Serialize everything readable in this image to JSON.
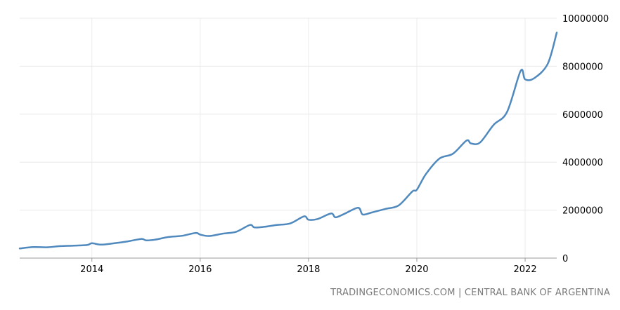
{
  "chart_data": {
    "type": "line",
    "title": "",
    "xlabel": "",
    "ylabel": "",
    "grid": true,
    "xlim": [
      "2012-09",
      "2022-08"
    ],
    "ylim": [
      0,
      10000000
    ],
    "x_ticks": [
      "2014",
      "2016",
      "2018",
      "2020",
      "2022"
    ],
    "y_ticks": [
      "0",
      "2000000",
      "4000000",
      "6000000",
      "8000000",
      "10000000"
    ],
    "series": [
      {
        "color": "#4f89bd",
        "x": [
          "2012-09",
          "2012-12",
          "2013-03",
          "2013-06",
          "2013-09",
          "2013-12",
          "2014-01",
          "2014-03",
          "2014-06",
          "2014-09",
          "2014-12",
          "2015-01",
          "2015-03",
          "2015-06",
          "2015-09",
          "2015-12",
          "2016-01",
          "2016-03",
          "2016-06",
          "2016-09",
          "2016-12",
          "2017-01",
          "2017-03",
          "2017-06",
          "2017-09",
          "2017-12",
          "2018-01",
          "2018-03",
          "2018-06",
          "2018-07",
          "2018-09",
          "2018-12",
          "2019-01",
          "2019-03",
          "2019-06",
          "2019-09",
          "2019-12",
          "2020-01",
          "2020-03",
          "2020-06",
          "2020-09",
          "2020-12",
          "2021-01",
          "2021-03",
          "2021-06",
          "2021-09",
          "2021-12",
          "2022-01",
          "2022-03",
          "2022-06",
          "2022-08"
        ],
        "values": [
          400000,
          460000,
          450000,
          500000,
          520000,
          550000,
          620000,
          560000,
          620000,
          700000,
          800000,
          740000,
          770000,
          880000,
          930000,
          1050000,
          980000,
          920000,
          1020000,
          1100000,
          1380000,
          1280000,
          1300000,
          1380000,
          1450000,
          1740000,
          1600000,
          1630000,
          1860000,
          1700000,
          1850000,
          2100000,
          1820000,
          1900000,
          2050000,
          2200000,
          2780000,
          2850000,
          3500000,
          4150000,
          4350000,
          4900000,
          4780000,
          4820000,
          5550000,
          6100000,
          7800000,
          7450000,
          7500000,
          8100000,
          9400000
        ]
      }
    ]
  },
  "footer": {
    "source": "TRADINGECONOMICS.COM | CENTRAL BANK OF ARGENTINA"
  }
}
